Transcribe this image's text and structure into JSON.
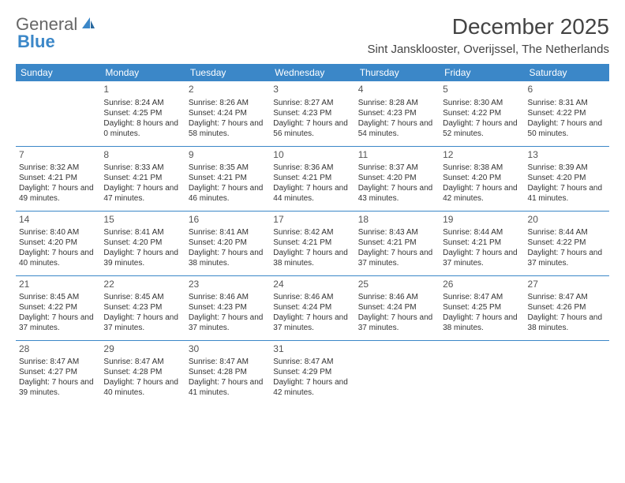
{
  "logo": {
    "text1": "General",
    "text2": "Blue"
  },
  "title": "December 2025",
  "location": "Sint Jansklooster, Overijssel, The Netherlands",
  "header_bg": "#3b87c8",
  "weekdays": [
    "Sunday",
    "Monday",
    "Tuesday",
    "Wednesday",
    "Thursday",
    "Friday",
    "Saturday"
  ],
  "first_weekday_index": 1,
  "days": [
    {
      "n": 1,
      "sr": "8:24 AM",
      "ss": "4:25 PM",
      "dl": "8 hours and 0 minutes."
    },
    {
      "n": 2,
      "sr": "8:26 AM",
      "ss": "4:24 PM",
      "dl": "7 hours and 58 minutes."
    },
    {
      "n": 3,
      "sr": "8:27 AM",
      "ss": "4:23 PM",
      "dl": "7 hours and 56 minutes."
    },
    {
      "n": 4,
      "sr": "8:28 AM",
      "ss": "4:23 PM",
      "dl": "7 hours and 54 minutes."
    },
    {
      "n": 5,
      "sr": "8:30 AM",
      "ss": "4:22 PM",
      "dl": "7 hours and 52 minutes."
    },
    {
      "n": 6,
      "sr": "8:31 AM",
      "ss": "4:22 PM",
      "dl": "7 hours and 50 minutes."
    },
    {
      "n": 7,
      "sr": "8:32 AM",
      "ss": "4:21 PM",
      "dl": "7 hours and 49 minutes."
    },
    {
      "n": 8,
      "sr": "8:33 AM",
      "ss": "4:21 PM",
      "dl": "7 hours and 47 minutes."
    },
    {
      "n": 9,
      "sr": "8:35 AM",
      "ss": "4:21 PM",
      "dl": "7 hours and 46 minutes."
    },
    {
      "n": 10,
      "sr": "8:36 AM",
      "ss": "4:21 PM",
      "dl": "7 hours and 44 minutes."
    },
    {
      "n": 11,
      "sr": "8:37 AM",
      "ss": "4:20 PM",
      "dl": "7 hours and 43 minutes."
    },
    {
      "n": 12,
      "sr": "8:38 AM",
      "ss": "4:20 PM",
      "dl": "7 hours and 42 minutes."
    },
    {
      "n": 13,
      "sr": "8:39 AM",
      "ss": "4:20 PM",
      "dl": "7 hours and 41 minutes."
    },
    {
      "n": 14,
      "sr": "8:40 AM",
      "ss": "4:20 PM",
      "dl": "7 hours and 40 minutes."
    },
    {
      "n": 15,
      "sr": "8:41 AM",
      "ss": "4:20 PM",
      "dl": "7 hours and 39 minutes."
    },
    {
      "n": 16,
      "sr": "8:41 AM",
      "ss": "4:20 PM",
      "dl": "7 hours and 38 minutes."
    },
    {
      "n": 17,
      "sr": "8:42 AM",
      "ss": "4:21 PM",
      "dl": "7 hours and 38 minutes."
    },
    {
      "n": 18,
      "sr": "8:43 AM",
      "ss": "4:21 PM",
      "dl": "7 hours and 37 minutes."
    },
    {
      "n": 19,
      "sr": "8:44 AM",
      "ss": "4:21 PM",
      "dl": "7 hours and 37 minutes."
    },
    {
      "n": 20,
      "sr": "8:44 AM",
      "ss": "4:22 PM",
      "dl": "7 hours and 37 minutes."
    },
    {
      "n": 21,
      "sr": "8:45 AM",
      "ss": "4:22 PM",
      "dl": "7 hours and 37 minutes."
    },
    {
      "n": 22,
      "sr": "8:45 AM",
      "ss": "4:23 PM",
      "dl": "7 hours and 37 minutes."
    },
    {
      "n": 23,
      "sr": "8:46 AM",
      "ss": "4:23 PM",
      "dl": "7 hours and 37 minutes."
    },
    {
      "n": 24,
      "sr": "8:46 AM",
      "ss": "4:24 PM",
      "dl": "7 hours and 37 minutes."
    },
    {
      "n": 25,
      "sr": "8:46 AM",
      "ss": "4:24 PM",
      "dl": "7 hours and 37 minutes."
    },
    {
      "n": 26,
      "sr": "8:47 AM",
      "ss": "4:25 PM",
      "dl": "7 hours and 38 minutes."
    },
    {
      "n": 27,
      "sr": "8:47 AM",
      "ss": "4:26 PM",
      "dl": "7 hours and 38 minutes."
    },
    {
      "n": 28,
      "sr": "8:47 AM",
      "ss": "4:27 PM",
      "dl": "7 hours and 39 minutes."
    },
    {
      "n": 29,
      "sr": "8:47 AM",
      "ss": "4:28 PM",
      "dl": "7 hours and 40 minutes."
    },
    {
      "n": 30,
      "sr": "8:47 AM",
      "ss": "4:28 PM",
      "dl": "7 hours and 41 minutes."
    },
    {
      "n": 31,
      "sr": "8:47 AM",
      "ss": "4:29 PM",
      "dl": "7 hours and 42 minutes."
    }
  ],
  "labels": {
    "sunrise": "Sunrise:",
    "sunset": "Sunset:",
    "daylight": "Daylight:"
  }
}
